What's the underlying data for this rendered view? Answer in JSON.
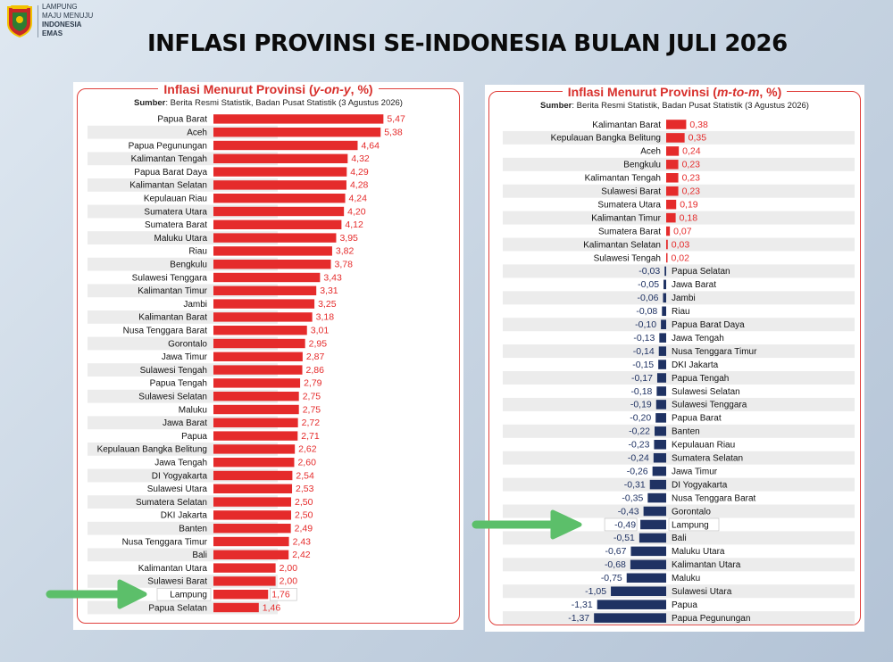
{
  "logo": {
    "lines": [
      "LAMPUNG",
      "MAJU MENUJU"
    ],
    "bold_lines": [
      "INDONESIA",
      "EMAS"
    ]
  },
  "page_title": "INFLASI PROVINSI  SE-INDONESIA BULAN JULI 2026",
  "colors": {
    "positive": "#e52b2b",
    "negative": "#1f3263",
    "accent": "#e0403c",
    "arrow": "#5cbf6a"
  },
  "left_panel": {
    "title_prefix": "Inflasi Menurut Provinsi (",
    "title_italic": "y-on-y",
    "title_suffix": ", %)",
    "source_label": "Sumber",
    "source_text": ": Berita Resmi Statistik, Badan Pusat Statistik (3 Agustus 2026)",
    "highlight": "Lampung"
  },
  "right_panel": {
    "title_prefix": "Inflasi Menurut Provinsi (",
    "title_italic": "m-to-m",
    "title_suffix": ", %)",
    "source_label": "Sumber",
    "source_text": ": Berita Resmi Statistik, Badan Pusat Statistik (3 Agustus 2026)",
    "highlight": "Lampung"
  },
  "chart_data": [
    {
      "type": "bar",
      "orientation": "horizontal",
      "title": "Inflasi Menurut Provinsi (y-on-y, %)",
      "categories": [
        "Papua Barat",
        "Aceh",
        "Papua Pegunungan",
        "Kalimantan Tengah",
        "Papua Barat Daya",
        "Kalimantan Selatan",
        "Kepulauan Riau",
        "Sumatera Utara",
        "Sumatera Barat",
        "Maluku Utara",
        "Riau",
        "Bengkulu",
        "Sulawesi Tenggara",
        "Kalimantan Timur",
        "Jambi",
        "Kalimantan Barat",
        "Nusa Tenggara Barat",
        "Gorontalo",
        "Jawa Timur",
        "Sulawesi Tengah",
        "Papua Tengah",
        "Sulawesi Selatan",
        "Maluku",
        "Jawa Barat",
        "Papua",
        "Kepulauan Bangka Belitung",
        "Jawa Tengah",
        "DI Yogyakarta",
        "Sulawesi Utara",
        "Sumatera Selatan",
        "DKI Jakarta",
        "Banten",
        "Nusa Tenggara Timur",
        "Bali",
        "Kalimantan Utara",
        "Sulawesi Barat",
        "Lampung",
        "Papua Selatan"
      ],
      "values": [
        5.47,
        5.38,
        4.64,
        4.32,
        4.29,
        4.28,
        4.24,
        4.2,
        4.12,
        3.95,
        3.82,
        3.78,
        3.43,
        3.31,
        3.25,
        3.18,
        3.01,
        2.95,
        2.87,
        2.86,
        2.79,
        2.75,
        2.75,
        2.72,
        2.71,
        2.62,
        2.6,
        2.54,
        2.53,
        2.5,
        2.5,
        2.49,
        2.43,
        2.42,
        2.0,
        2.0,
        1.76,
        1.46
      ],
      "labels": [
        "5,47",
        "5,38",
        "4,64",
        "4,32",
        "4,29",
        "4,28",
        "4,24",
        "4,20",
        "4,12",
        "3,95",
        "3,82",
        "3,78",
        "3,43",
        "3,31",
        "3,25",
        "3,18",
        "3,01",
        "2,95",
        "2,87",
        "2,86",
        "2,79",
        "2,75",
        "2,75",
        "2,72",
        "2,71",
        "2,62",
        "2,60",
        "2,54",
        "2,53",
        "2,50",
        "2,50",
        "2,49",
        "2,43",
        "2,42",
        "2,00",
        "2,00",
        "1,76",
        "1,46"
      ]
    },
    {
      "type": "bar",
      "orientation": "horizontal",
      "title": "Inflasi Menurut Provinsi (m-to-m, %)",
      "categories": [
        "Kalimantan Barat",
        "Kepulauan Bangka Belitung",
        "Aceh",
        "Bengkulu",
        "Kalimantan Tengah",
        "Sulawesi Barat",
        "Sumatera Utara",
        "Kalimantan Timur",
        "Sumatera Barat",
        "Kalimantan Selatan",
        "Sulawesi Tengah",
        "Papua Selatan",
        "Jawa Barat",
        "Jambi",
        "Riau",
        "Papua Barat Daya",
        "Jawa Tengah",
        "Nusa Tenggara Timur",
        "DKI Jakarta",
        "Papua Tengah",
        "Sulawesi Selatan",
        "Sulawesi Tenggara",
        "Papua Barat",
        "Banten",
        "Kepulauan Riau",
        "Sumatera Selatan",
        "Jawa Timur",
        "DI Yogyakarta",
        "Nusa Tenggara Barat",
        "Gorontalo",
        "Lampung",
        "Bali",
        "Maluku Utara",
        "Kalimantan Utara",
        "Maluku",
        "Sulawesi Utara",
        "Papua",
        "Papua Pegunungan"
      ],
      "values": [
        0.38,
        0.35,
        0.24,
        0.23,
        0.23,
        0.23,
        0.19,
        0.18,
        0.07,
        0.03,
        0.02,
        -0.03,
        -0.05,
        -0.06,
        -0.08,
        -0.1,
        -0.13,
        -0.14,
        -0.15,
        -0.17,
        -0.18,
        -0.19,
        -0.2,
        -0.22,
        -0.23,
        -0.24,
        -0.26,
        -0.31,
        -0.35,
        -0.43,
        -0.49,
        -0.51,
        -0.67,
        -0.68,
        -0.75,
        -1.05,
        -1.31,
        -1.37
      ],
      "labels": [
        "0,38",
        "0,35",
        "0,24",
        "0,23",
        "0,23",
        "0,23",
        "0,19",
        "0,18",
        "0,07",
        "0,03",
        "0,02",
        "-0,03",
        "-0,05",
        "-0,06",
        "-0,08",
        "-0,10",
        "-0,13",
        "-0,14",
        "-0,15",
        "-0,17",
        "-0,18",
        "-0,19",
        "-0,20",
        "-0,22",
        "-0,23",
        "-0,24",
        "-0,26",
        "-0,31",
        "-0,35",
        "-0,43",
        "-0,49",
        "-0,51",
        "-0,67",
        "-0,68",
        "-0,75",
        "-1,05",
        "-1,31",
        "-1,37"
      ]
    }
  ]
}
